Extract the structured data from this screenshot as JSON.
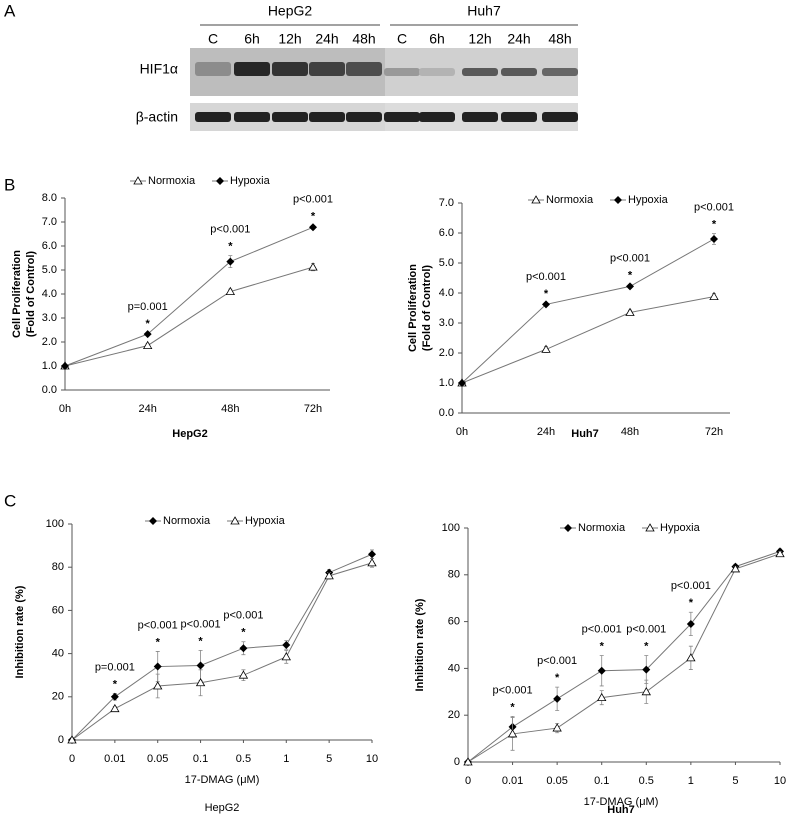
{
  "panel_labels": [
    "A",
    "B",
    "C"
  ],
  "blot": {
    "groups": [
      {
        "name": "HepG2",
        "lanes": [
          "C",
          "6h",
          "12h",
          "24h",
          "48h"
        ]
      },
      {
        "name": "Huh7",
        "lanes": [
          "C",
          "6h",
          "12h",
          "24h",
          "48h"
        ]
      }
    ],
    "rows": [
      "HIF1α",
      "β-actin"
    ]
  },
  "chart_data": [
    {
      "type": "line",
      "xlabel": "HepG2",
      "xlabel_bold": true,
      "ylabel": [
        "Cell Proliferation",
        "(Fold of Control)"
      ],
      "categories": [
        "0h",
        "24h",
        "48h",
        "72h"
      ],
      "series": [
        {
          "name": "Normoxia",
          "color": "#000000",
          "marker": "triangle",
          "values": [
            1.0,
            1.85,
            4.1,
            5.12
          ],
          "errors": [
            0.03,
            0.08,
            0.1,
            0.15
          ]
        },
        {
          "name": "Hypoxia",
          "color": "#000000",
          "marker": "diamond",
          "values": [
            1.0,
            2.33,
            5.35,
            6.78
          ],
          "errors": [
            0.03,
            0.05,
            0.25,
            0.08
          ]
        }
      ],
      "annotations": [
        null,
        "p=0.001",
        "p<0.001",
        "p<0.001"
      ],
      "stars": [
        null,
        "*",
        "*",
        "*"
      ],
      "ylim": [
        0,
        8
      ],
      "yticks": [
        {
          "value": 0,
          "label": "0.0"
        },
        {
          "value": 1,
          "label": "1.0"
        },
        {
          "value": 2,
          "label": "2.0"
        },
        {
          "value": 3,
          "label": "3.0"
        },
        {
          "value": 4,
          "label": "4.0"
        },
        {
          "value": 5,
          "label": "5.0"
        },
        {
          "value": 6,
          "label": "6.0"
        },
        {
          "value": 7,
          "label": "7.0"
        },
        {
          "value": 8,
          "label": "8.0"
        }
      ],
      "grid": false,
      "legend": "top"
    },
    {
      "type": "line",
      "xlabel": "Huh7",
      "xlabel_bold": true,
      "ylabel": [
        "Cell Proliferation",
        "(Fold of Control)"
      ],
      "categories": [
        "0h",
        "24h",
        "48h",
        "72h"
      ],
      "series": [
        {
          "name": "Normoxia",
          "color": "#000000",
          "marker": "triangle",
          "values": [
            1.0,
            2.12,
            3.35,
            3.88
          ],
          "errors": [
            0.03,
            0.1,
            0.08,
            0.1
          ]
        },
        {
          "name": "Hypoxia",
          "color": "#000000",
          "marker": "diamond",
          "values": [
            1.0,
            3.62,
            4.22,
            5.8
          ],
          "errors": [
            0.03,
            0.05,
            0.06,
            0.18
          ]
        }
      ],
      "annotations": [
        null,
        "p<0.001",
        "p<0.001",
        "p<0.001"
      ],
      "stars": [
        null,
        "*",
        "*",
        "*"
      ],
      "ylim": [
        0,
        7
      ],
      "yticks": [
        {
          "value": 0,
          "label": "0.0"
        },
        {
          "value": 1,
          "label": "1.0"
        },
        {
          "value": 2,
          "label": "2.0"
        },
        {
          "value": 3,
          "label": "3.0"
        },
        {
          "value": 4,
          "label": "4.0"
        },
        {
          "value": 5,
          "label": "5.0"
        },
        {
          "value": 6,
          "label": "6.0"
        },
        {
          "value": 7,
          "label": "7.0"
        }
      ],
      "grid": false,
      "legend": "top"
    },
    {
      "type": "line",
      "xlabel": "17-DMAG (μM)",
      "xlabel_bold": false,
      "caption": "HepG2",
      "caption_bold": false,
      "ylabel": [
        "Inhibition rate (%)"
      ],
      "categories": [
        "0",
        "0.01",
        "0.05",
        "0.1",
        "0.5",
        "1",
        "5",
        "10"
      ],
      "series": [
        {
          "name": "Normoxia",
          "color": "#000000",
          "marker": "diamond",
          "values": [
            0,
            20,
            34,
            34.5,
            42.5,
            44,
            77.5,
            86
          ],
          "errors": [
            0,
            1.5,
            7,
            7,
            3,
            2,
            1.5,
            2
          ]
        },
        {
          "name": "Hypoxia",
          "color": "#000000",
          "marker": "triangle",
          "values": [
            0,
            14.5,
            25,
            26.5,
            30,
            38.5,
            76,
            82
          ],
          "errors": [
            0,
            1,
            5.5,
            6,
            2.5,
            3,
            1.5,
            2
          ]
        }
      ],
      "annotations": [
        null,
        "p=0.001",
        "p<0.001",
        "p<0.001",
        "p<0.001",
        null,
        null,
        null
      ],
      "stars": [
        null,
        "*",
        "*",
        "*",
        "*",
        null,
        null,
        null
      ],
      "ylim": [
        0,
        100
      ],
      "yticks": [
        0,
        20,
        40,
        60,
        80,
        100
      ],
      "grid": false,
      "legend": "top"
    },
    {
      "type": "line",
      "xlabel": "17-DMAG (μM)",
      "xlabel_bold": false,
      "caption": "Huh7",
      "caption_bold": true,
      "ylabel": [
        "Inhibition rate (%)"
      ],
      "categories": [
        "0",
        "0.01",
        "0.05",
        "0.1",
        "0.5",
        "1",
        "5",
        "10"
      ],
      "series": [
        {
          "name": "Normoxia",
          "color": "#000000",
          "marker": "diamond",
          "values": [
            0,
            15,
            27,
            39,
            39.5,
            59,
            83.5,
            90
          ],
          "errors": [
            0,
            4.5,
            5,
            6.5,
            6,
            5,
            1,
            1
          ]
        },
        {
          "name": "Hypoxia",
          "color": "#000000",
          "marker": "triangle",
          "values": [
            0,
            12,
            14.5,
            27.5,
            30,
            44.5,
            82.5,
            89
          ],
          "errors": [
            0,
            7,
            2,
            3,
            5,
            5,
            1,
            1
          ]
        }
      ],
      "annotations": [
        null,
        "p<0.001",
        "p<0.001",
        "p<0.001",
        "p<0.001",
        "p<0.001",
        null,
        null
      ],
      "stars": [
        null,
        "*",
        "*",
        "*",
        "*",
        "*",
        null,
        null
      ],
      "ylim": [
        0,
        100
      ],
      "yticks": [
        0,
        20,
        40,
        60,
        80,
        100
      ],
      "grid": false,
      "legend": "top"
    }
  ]
}
